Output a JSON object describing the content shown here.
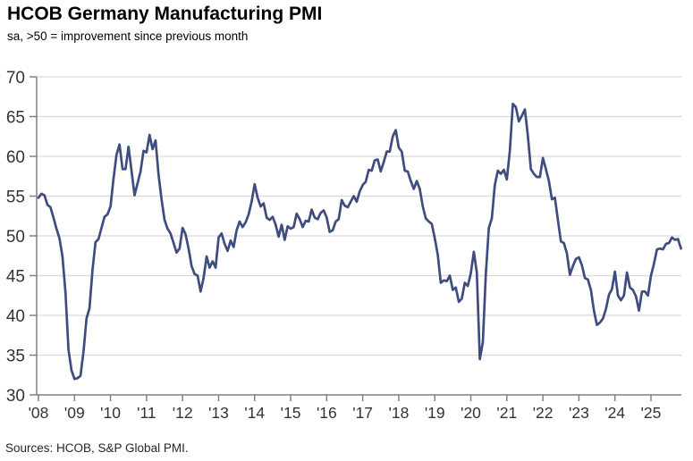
{
  "title": "HCOB Germany Manufacturing PMI",
  "subtitle": "sa, >50 = improvement since previous month",
  "source": "Sources: HCOB, S&P Global PMI.",
  "chart_data": {
    "type": "line",
    "title": "HCOB Germany Manufacturing PMI",
    "subtitle": "sa, >50 = improvement since previous month",
    "frequency": "monthly",
    "x_start": "2008-01",
    "x_end": "2025-11",
    "x_tick_labels": [
      "'08",
      "'09",
      "'10",
      "'11",
      "'12",
      "'13",
      "'14",
      "'15",
      "'16",
      "'17",
      "'18",
      "'19",
      "'20",
      "'21",
      "'22",
      "'23",
      "'24",
      "'25"
    ],
    "y_ticks": [
      30,
      35,
      40,
      45,
      50,
      55,
      60,
      65,
      70
    ],
    "ylim": [
      30,
      70
    ],
    "grid": "horizontal",
    "legend": "none",
    "reference_level_note": ">50 = improvement since previous month",
    "colors": {
      "line": "#3E4C80",
      "gridline": "#d9d9d9",
      "axis": "#808080",
      "tick_label": "#333333"
    },
    "series": [
      {
        "name": "Germany Manufacturing PMI",
        "values": [
          54.8,
          55.3,
          55.1,
          53.9,
          53.6,
          52.3,
          50.9,
          49.7,
          47.4,
          42.9,
          35.7,
          33.1,
          32.0,
          32.1,
          32.4,
          35.4,
          39.6,
          40.9,
          45.7,
          49.2,
          49.6,
          51.0,
          52.4,
          52.7,
          53.7,
          57.2,
          60.2,
          61.5,
          58.4,
          58.4,
          61.2,
          58.2,
          55.1,
          56.6,
          58.1,
          60.7,
          60.5,
          62.7,
          60.9,
          62.0,
          57.7,
          54.6,
          52.0,
          50.9,
          50.3,
          49.1,
          47.9,
          48.4,
          51.0,
          50.2,
          48.4,
          46.2,
          45.2,
          45.0,
          43.0,
          44.7,
          47.4,
          46.0,
          46.8,
          46.0,
          49.8,
          50.3,
          49.0,
          48.1,
          49.4,
          48.6,
          50.7,
          51.8,
          51.1,
          51.7,
          52.7,
          54.3,
          56.5,
          54.8,
          53.7,
          54.1,
          52.3,
          52.0,
          52.4,
          51.4,
          49.9,
          51.4,
          49.5,
          51.2,
          50.9,
          51.1,
          52.8,
          52.1,
          51.1,
          51.9,
          51.8,
          53.3,
          52.3,
          52.1,
          52.9,
          53.2,
          52.3,
          50.5,
          50.7,
          51.8,
          52.1,
          54.5,
          53.8,
          53.6,
          54.3,
          55.0,
          54.3,
          55.6,
          56.4,
          56.8,
          58.3,
          58.2,
          59.5,
          59.6,
          58.1,
          59.3,
          60.6,
          60.6,
          62.5,
          63.3,
          61.1,
          60.6,
          58.2,
          58.1,
          56.9,
          55.9,
          56.9,
          55.9,
          53.7,
          52.2,
          51.8,
          51.5,
          49.7,
          47.6,
          44.1,
          44.4,
          44.3,
          45.0,
          43.2,
          43.5,
          41.7,
          42.1,
          44.1,
          43.7,
          45.3,
          48.0,
          45.4,
          34.5,
          36.6,
          45.2,
          51.0,
          52.2,
          56.4,
          58.2,
          57.8,
          58.3,
          57.1,
          60.7,
          66.6,
          66.2,
          64.4,
          65.1,
          65.9,
          62.6,
          58.4,
          57.8,
          57.4,
          57.4,
          59.8,
          58.4,
          56.9,
          54.6,
          54.8,
          52.0,
          49.3,
          49.1,
          47.8,
          45.1,
          46.2,
          47.1,
          47.3,
          46.3,
          44.7,
          44.5,
          43.2,
          40.6,
          38.8,
          39.1,
          39.6,
          40.8,
          42.6,
          43.3,
          45.5,
          42.5,
          41.9,
          42.5,
          45.4,
          43.5,
          43.2,
          42.4,
          40.6,
          43.0,
          43.0,
          42.5,
          45.0,
          46.5,
          48.3,
          48.4,
          48.3,
          49.0,
          49.1,
          49.8,
          49.5,
          49.6,
          48.4
        ]
      }
    ]
  }
}
